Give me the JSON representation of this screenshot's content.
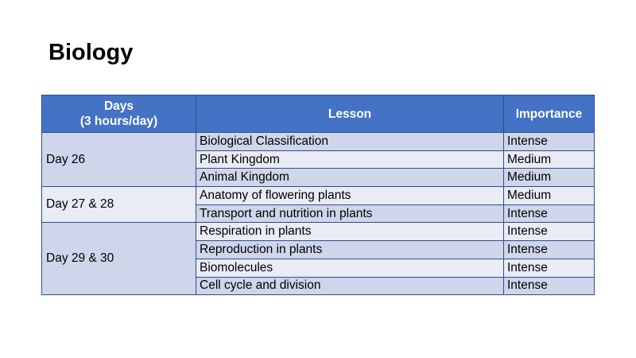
{
  "page": {
    "title": "Biology"
  },
  "table": {
    "headers": {
      "days_line1": "Days",
      "days_line2": "(3 hours/day)",
      "lesson": "Lesson",
      "importance": "Importance"
    },
    "groups": [
      {
        "day": "Day 26",
        "rows": [
          {
            "lesson": "Biological Classification",
            "importance": "Intense"
          },
          {
            "lesson": "Plant Kingdom",
            "importance": "Medium"
          },
          {
            "lesson": "Animal Kingdom",
            "importance": "Medium"
          }
        ]
      },
      {
        "day": "Day 27 & 28",
        "rows": [
          {
            "lesson": "Anatomy of flowering plants",
            "importance": "Medium"
          },
          {
            "lesson": "Transport and nutrition in plants",
            "importance": "Intense"
          }
        ]
      },
      {
        "day": "Day 29 & 30",
        "rows": [
          {
            "lesson": "Respiration in plants",
            "importance": "Intense"
          },
          {
            "lesson": "Reproduction in plants",
            "importance": "Intense"
          },
          {
            "lesson": "Biomolecules",
            "importance": "Intense"
          },
          {
            "lesson": "Cell cycle and division",
            "importance": "Intense"
          }
        ]
      }
    ]
  },
  "colors": {
    "header_bg": "#4472c4",
    "band_dark": "#cfd5ea",
    "band_light": "#e9ebf5",
    "border": "#2f4f87"
  }
}
